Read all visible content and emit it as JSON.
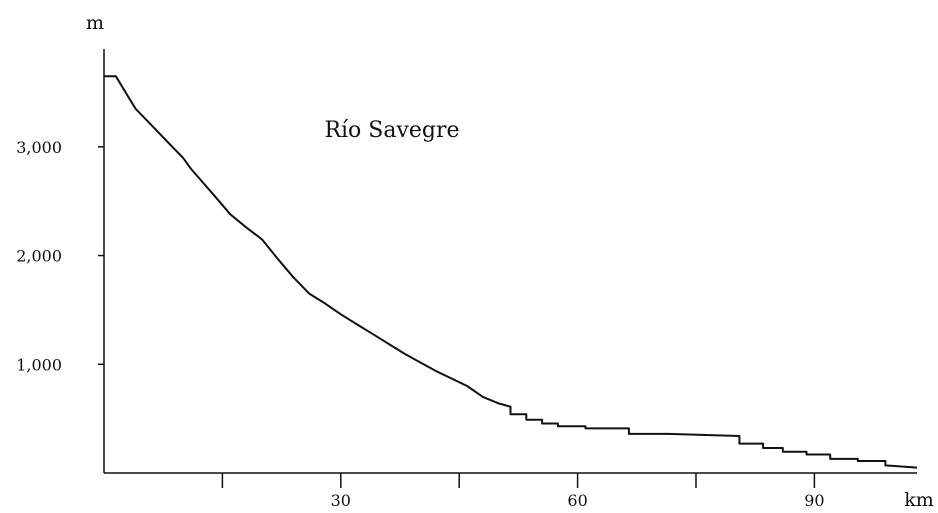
{
  "chart_data": {
    "type": "line",
    "title": "Río Savegre",
    "xlabel": "km",
    "ylabel": "m",
    "xlim": [
      0,
      103
    ],
    "ylim": [
      0,
      3900
    ],
    "x_ticks": [
      15,
      30,
      45,
      60,
      75,
      90
    ],
    "x_tick_labels": [
      "",
      "30",
      "",
      "60",
      "",
      "90"
    ],
    "y_ticks": [
      1000,
      2000,
      3000
    ],
    "y_tick_labels": [
      "1,000",
      "2,000",
      "3,000"
    ],
    "grid": false,
    "legend": "none",
    "line_color": "#111111",
    "series": [
      {
        "x": [
          0,
          1.5,
          4,
          6,
          8,
          10,
          11,
          14,
          16,
          18,
          20,
          22,
          24,
          26,
          28,
          30,
          32,
          34,
          36,
          38,
          40,
          42,
          44,
          46,
          48,
          50,
          51.5,
          51.5,
          53.5,
          53.5,
          55.5,
          55.5,
          57.5,
          57.5,
          61,
          61,
          66.5,
          66.5,
          71.5,
          80.5,
          80.5,
          83.5,
          83.5,
          86,
          86,
          89,
          89,
          92,
          92,
          95.5,
          95.5,
          99,
          99,
          103
        ],
        "y": [
          3650,
          3650,
          3350,
          3200,
          3050,
          2900,
          2800,
          2550,
          2380,
          2260,
          2150,
          1970,
          1800,
          1650,
          1560,
          1460,
          1370,
          1280,
          1190,
          1100,
          1020,
          940,
          870,
          800,
          700,
          640,
          610,
          540,
          540,
          490,
          490,
          455,
          455,
          430,
          430,
          410,
          410,
          360,
          360,
          340,
          270,
          270,
          230,
          230,
          195,
          195,
          170,
          170,
          130,
          130,
          110,
          110,
          70,
          50
        ]
      }
    ]
  }
}
